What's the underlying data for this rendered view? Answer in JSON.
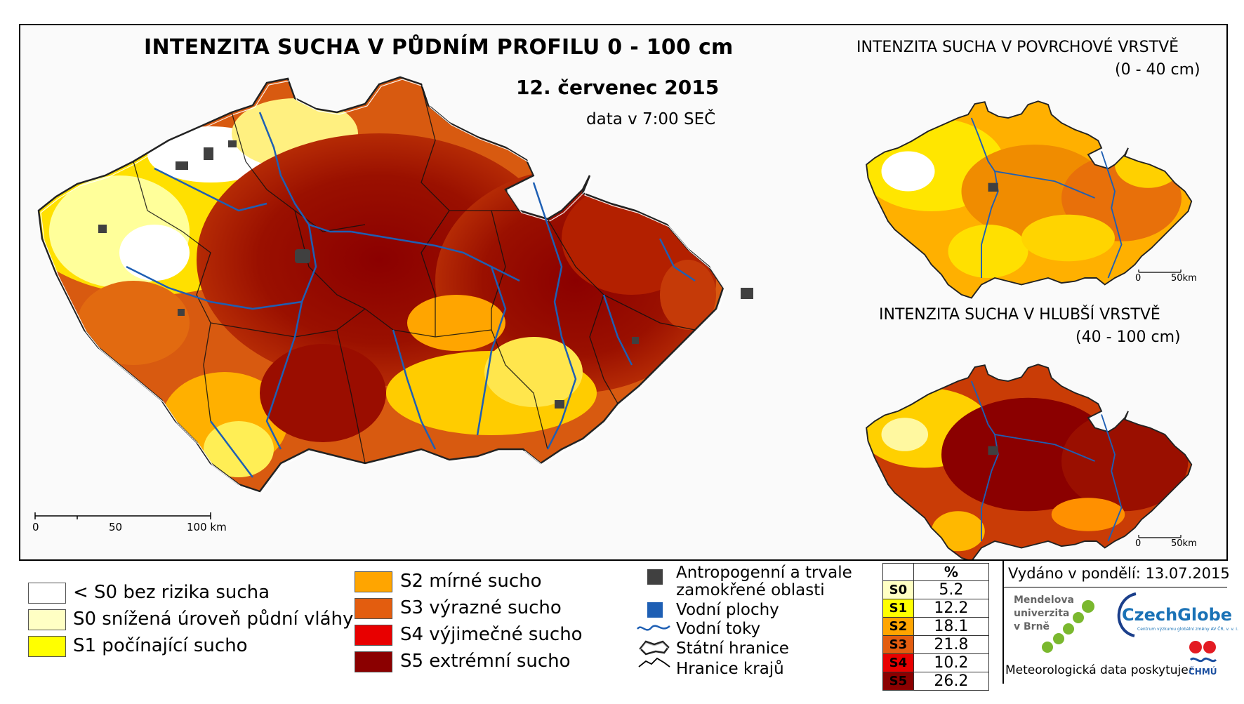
{
  "title": "INTENZITA SUCHA V PŮDNÍM PROFILU 0 - 100 cm",
  "date": "12. červenec 2015",
  "time_note": "data v 7:00 SEČ",
  "inset_surface": {
    "title": "INTENZITA SUCHA V POVRCHOVÉ VRSTVĚ",
    "depth": "(0 - 40 cm)"
  },
  "inset_deep": {
    "title": "INTENZITA SUCHA V HLUBŠÍ VRSTVĚ",
    "depth": "(40 - 100 cm)"
  },
  "scale_main": {
    "label0": "0",
    "label1": "50",
    "label2": "100 km"
  },
  "scale_inset": {
    "label0": "0",
    "label1": "50km"
  },
  "legend_classes": [
    {
      "label": "< S0 bez rizika sucha",
      "color": "#ffffff"
    },
    {
      "label": "S0 snížená úroveň půdní vláhy",
      "color": "#ffffc4"
    },
    {
      "label": "S1 počínající sucho",
      "color": "#ffff00"
    },
    {
      "label": "S2 mírné sucho",
      "color": "#ffa500"
    },
    {
      "label": "S3 výrazné sucho",
      "color": "#e35d0f"
    },
    {
      "label": "S4 výjimečné sucho",
      "color": "#e80000"
    },
    {
      "label": "S5 extrémní sucho",
      "color": "#8b0000"
    }
  ],
  "legend_features": {
    "anthropogenic": "Antropogenní a trvale zamokřené oblasti",
    "anthropogenic_l1": "Antropogenní a trvale",
    "anthropogenic_l2": "zamokřené oblasti",
    "water_areas": "Vodní plochy",
    "rivers": "Vodní toky",
    "state_border": "Státní hranice",
    "region_border": "Hranice krajů"
  },
  "percent_table": {
    "header": "%",
    "rows": [
      {
        "cls": "S0",
        "value": "5.2",
        "color": "#ffffc4"
      },
      {
        "cls": "S1",
        "value": "12.2",
        "color": "#ffff00"
      },
      {
        "cls": "S2",
        "value": "18.1",
        "color": "#ffa500"
      },
      {
        "cls": "S3",
        "value": "21.8",
        "color": "#e35d0f"
      },
      {
        "cls": "S4",
        "value": "10.2",
        "color": "#e80000"
      },
      {
        "cls": "S5",
        "value": "26.2",
        "color": "#8b0000"
      }
    ]
  },
  "issued": "Vydáno v pondělí: 13.07.2015",
  "mendel": {
    "l1": "Mendelova",
    "l2": "univerzita",
    "l3": "v Brně"
  },
  "czechglobe": "CzechGlobe",
  "czechglobe_sub": "Centrum výzkumu globální změny AV ČR, v. v. i.",
  "meteo": "Meteorologická data poskytuje:",
  "chmu": "ČHMÚ",
  "colors": {
    "water": "#1e5fb4",
    "anthropogenic": "#404040",
    "border": "#000000"
  }
}
